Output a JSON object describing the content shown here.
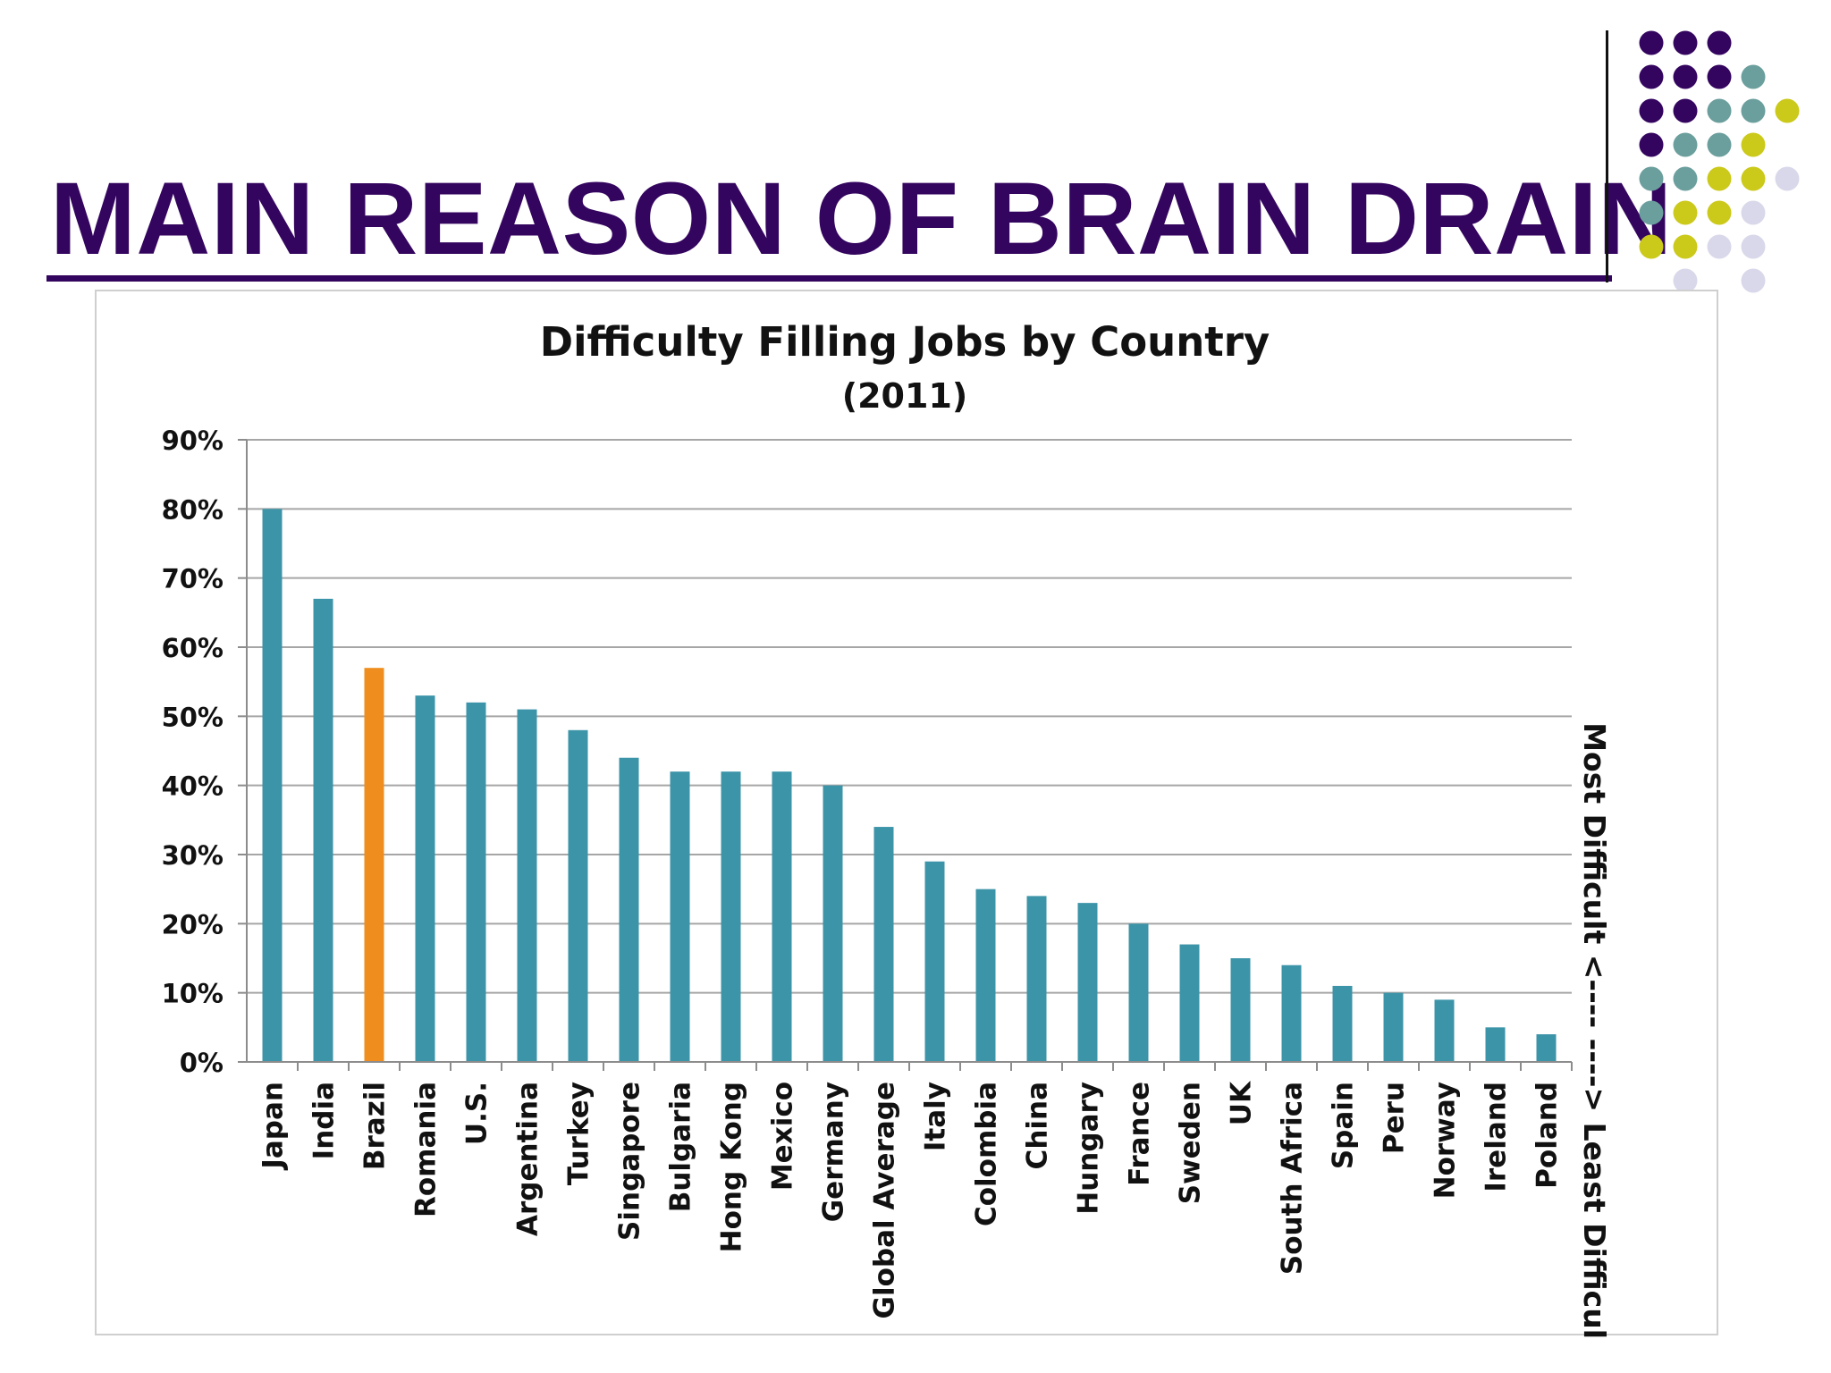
{
  "slide": {
    "title": "MAIN REASON OF BRAIN DRAIN"
  },
  "colors": {
    "title": "#34055f",
    "bar": "#3c94a8",
    "highlight_bar": "#ef8e1e",
    "dot_purple": "#34055f",
    "dot_teal": "#6b9f9d",
    "dot_yellow": "#cbc91a",
    "dot_lavender": "#d9d8ea"
  },
  "chart_data": {
    "type": "bar",
    "title": "Difficulty Filling Jobs by Country",
    "subtitle": "(2011)",
    "right_label": "Most Difficult <---- ----> Least Difficult",
    "categories": [
      "Japan",
      "India",
      "Brazil",
      "Romania",
      "U.S.",
      "Argentina",
      "Turkey",
      "Singapore",
      "Bulgaria",
      "Hong Kong",
      "Mexico",
      "Germany",
      "Global Average",
      "Italy",
      "Colombia",
      "China",
      "Hungary",
      "France",
      "Sweden",
      "UK",
      "South Africa",
      "Spain",
      "Peru",
      "Norway",
      "Ireland",
      "Poland"
    ],
    "values": [
      80,
      67,
      57,
      53,
      52,
      51,
      48,
      44,
      42,
      42,
      42,
      40,
      34,
      29,
      25,
      24,
      23,
      20,
      17,
      15,
      14,
      11,
      10,
      9,
      5,
      4
    ],
    "highlight": [
      "Brazil"
    ],
    "ylim": [
      0,
      90
    ],
    "yticks": [
      "0%",
      "10%",
      "20%",
      "30%",
      "40%",
      "50%",
      "60%",
      "70%",
      "80%",
      "90%"
    ],
    "grid": true,
    "legend": "none"
  }
}
